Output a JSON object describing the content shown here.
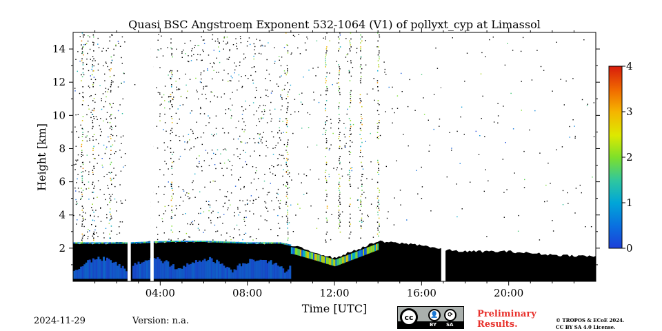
{
  "chart_data": {
    "type": "heatmap",
    "title": "Quasi BSC Angstroem Exponent 532-1064 (V1) of pollyxt_cyp at Limassol",
    "xlabel": "Time [UTC]",
    "ylabel": "Height [km]",
    "xlim": [
      0,
      24
    ],
    "ylim": [
      0,
      15
    ],
    "x_ticks": [
      4,
      8,
      12,
      16,
      20
    ],
    "x_tick_labels": [
      "04:00",
      "08:00",
      "12:00",
      "16:00",
      "20:00"
    ],
    "y_ticks": [
      2,
      4,
      6,
      8,
      10,
      12,
      14
    ],
    "y_tick_labels": [
      "2",
      "4",
      "6",
      "8",
      "10",
      "12",
      "14"
    ],
    "colorbar": {
      "range": [
        0,
        4
      ],
      "ticks": [
        0,
        1,
        2,
        3,
        4
      ],
      "tick_labels": [
        "0",
        "1",
        "2",
        "3",
        "4"
      ],
      "colormap": "jet"
    },
    "no_data_gaps_utc": [
      [
        2.5,
        2.65
      ],
      [
        3.55,
        3.7
      ],
      [
        16.9,
        17.1
      ]
    ],
    "low_cloud_top_km": [
      [
        0,
        2.3
      ],
      [
        2.5,
        2.3
      ],
      [
        4.5,
        2.4
      ],
      [
        6,
        2.4
      ],
      [
        8,
        2.3
      ],
      [
        9.5,
        2.3
      ],
      [
        10.2,
        2.1
      ],
      [
        11,
        1.8
      ],
      [
        12,
        1.4
      ],
      [
        13,
        1.9
      ],
      [
        14,
        2.4
      ],
      [
        15,
        2.3
      ],
      [
        16,
        2.2
      ],
      [
        17,
        1.9
      ],
      [
        18,
        1.8
      ],
      [
        20,
        1.8
      ],
      [
        22,
        1.6
      ],
      [
        24,
        1.5
      ]
    ],
    "aerosol_layer_bottom_km_mean_angstroem": 0.5,
    "cirrus_columns_utc": [
      0.4,
      0.9,
      1.7,
      3.6,
      4.5,
      9.8,
      11.6,
      12.2,
      12.7,
      13.2,
      14.0
    ]
  },
  "footer": {
    "date": "2024-11-29",
    "version": "Version: n.a.",
    "license_badge": {
      "cc": "cc",
      "by": "BY",
      "sa": "SA"
    },
    "preliminary": "Preliminary Results.",
    "copyright_line1": "© TROPOS & ECoE 2024.",
    "copyright_line2": "CC BY SA 4.0 License."
  }
}
